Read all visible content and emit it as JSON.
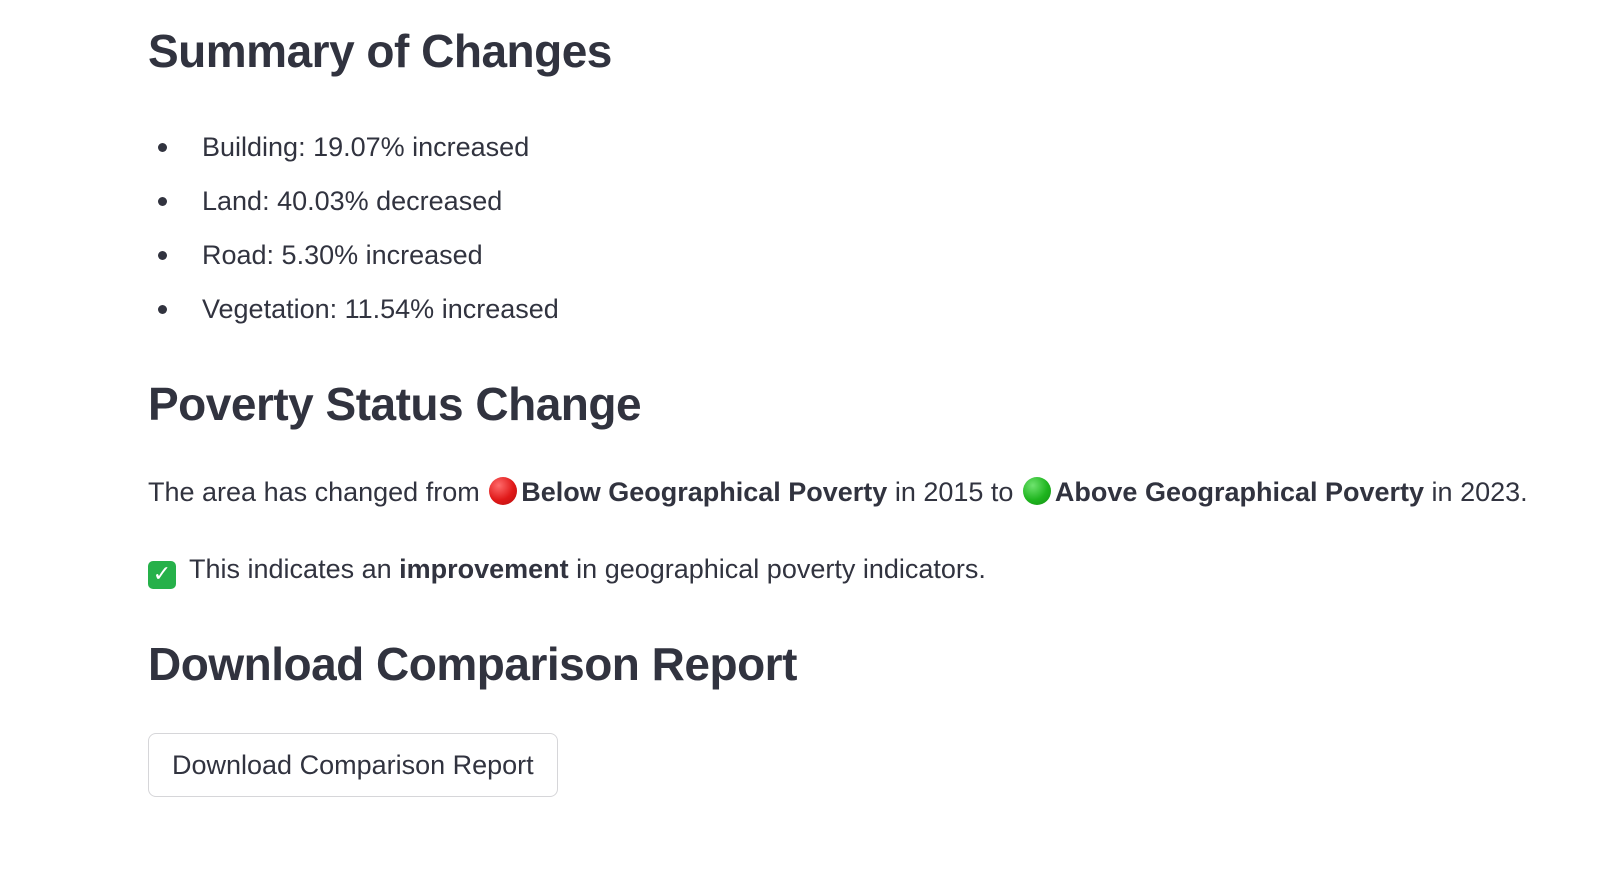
{
  "summary": {
    "heading": "Summary of Changes",
    "items": [
      {
        "label": "Building: 19.07% increased"
      },
      {
        "label": "Land: 40.03% decreased"
      },
      {
        "label": "Road: 5.30% increased"
      },
      {
        "label": "Vegetation: 11.54% increased"
      }
    ]
  },
  "poverty": {
    "heading": "Poverty Status Change",
    "status_prefix": "The area has changed from ",
    "from_icon": "red-circle-icon",
    "from_status": "Below Geographical Poverty",
    "from_year_text": " in 2015 to ",
    "to_icon": "green-circle-icon",
    "to_status": "Above Geographical Poverty",
    "to_year_text": " in 2023.",
    "indicator_icon": "check-mark-icon",
    "indicator_prefix": " This indicates an ",
    "indicator_bold": "improvement",
    "indicator_suffix": " in geographical poverty indicators.",
    "colors": {
      "red": "#e01919",
      "green": "#1fb51f",
      "check": "#26b14a"
    }
  },
  "download": {
    "heading": "Download Comparison Report",
    "button_label": "Download Comparison Report"
  }
}
